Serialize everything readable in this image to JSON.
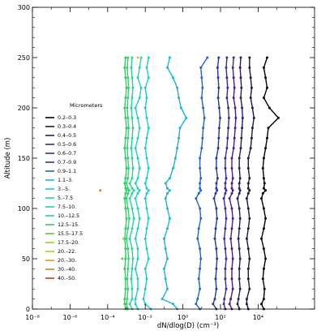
{
  "chart_data": {
    "type": "line",
    "xlabel": "dN/dlog(D) (cm⁻³)",
    "ylabel": "Altitude (m)",
    "x_scale": "log",
    "xlim": [
      1e-08,
      10000000.0
    ],
    "ylim": [
      0,
      300
    ],
    "x_ticks": [
      1e-08,
      1e-06,
      0.0001,
      0.01,
      1,
      100,
      10000
    ],
    "x_tick_labels": [
      "10⁻⁸",
      "10⁻⁶",
      "10⁻⁴",
      "10⁻²",
      "10⁰",
      "10²",
      "10⁴"
    ],
    "y_ticks": [
      0,
      50,
      100,
      150,
      200,
      250,
      300
    ],
    "y_tick_labels": [
      "0",
      "50",
      "100",
      "150",
      "200",
      "250",
      "300"
    ],
    "legend_title": "Micrometers",
    "legend_position": "left",
    "altitudes": [
      0,
      5,
      10,
      20,
      30,
      40,
      50,
      60,
      70,
      80,
      90,
      100,
      110,
      115,
      118,
      120,
      125,
      130,
      140,
      150,
      160,
      170,
      180,
      190,
      200,
      210,
      220,
      230,
      240,
      250
    ],
    "series": [
      {
        "name": "0.2–0.3",
        "color": "#000000",
        "x": [
          20000,
          15000,
          20000,
          22000,
          18000,
          20000,
          25000,
          20000,
          15000,
          20000,
          25000,
          20000,
          15000,
          18000,
          25000,
          20000,
          22000,
          20000,
          18000,
          20000,
          25000,
          30000,
          35000,
          120000,
          40000,
          20000,
          30000,
          25000,
          20000,
          30000
        ]
      },
      {
        "name": "0.3–0.4",
        "color": "#1a1a40",
        "x": [
          3000,
          2500,
          2500,
          3500,
          3000,
          3000,
          3500,
          3000,
          2500,
          3000,
          3500,
          3000,
          2500,
          3000,
          3500,
          3000,
          3000,
          3500,
          3000,
          3000,
          4000,
          4500,
          5000,
          6000,
          5000,
          4000,
          4500,
          4000,
          3500,
          3500
        ]
      },
      {
        "name": "0.4–0.5",
        "color": "#2e1a5e",
        "x": [
          1000,
          800,
          900,
          1100,
          1000,
          1000,
          1100,
          1000,
          900,
          1000,
          1100,
          1000,
          800,
          1000,
          1100,
          1000,
          1000,
          1100,
          1000,
          1000,
          1200,
          1300,
          1400,
          1500,
          1400,
          1200,
          1300,
          1200,
          1100,
          1200
        ]
      },
      {
        "name": "0.5–0.6",
        "color": "#4a1e82",
        "x": [
          400,
          300,
          350,
          450,
          400,
          400,
          450,
          400,
          350,
          400,
          450,
          400,
          300,
          400,
          450,
          400,
          400,
          450,
          400,
          400,
          500,
          550,
          600,
          650,
          600,
          500,
          550,
          500,
          450,
          500
        ]
      },
      {
        "name": "0.6–0.7",
        "color": "#3a2a96",
        "x": [
          180,
          150,
          160,
          200,
          180,
          180,
          200,
          180,
          160,
          180,
          200,
          180,
          150,
          180,
          200,
          180,
          180,
          200,
          180,
          180,
          220,
          240,
          260,
          280,
          260,
          220,
          240,
          220,
          200,
          220
        ]
      },
      {
        "name": "0.7–0.9",
        "color": "#1e3aa0",
        "x": [
          60,
          40,
          50,
          60,
          55,
          60,
          65,
          60,
          50,
          55,
          65,
          60,
          45,
          55,
          65,
          60,
          60,
          70,
          60,
          60,
          75,
          80,
          85,
          95,
          85,
          75,
          80,
          75,
          70,
          80
        ]
      },
      {
        "name": "0.9–1.1",
        "color": "#1e64c8",
        "x": [
          8,
          5,
          6,
          8,
          7,
          8,
          9,
          8,
          6,
          7,
          9,
          8,
          5,
          7,
          9,
          8,
          8,
          9,
          8,
          8,
          10,
          11,
          12,
          14,
          12,
          10,
          11,
          10,
          9,
          20
        ]
      },
      {
        "name": "1.1–3.",
        "color": "#19b4d2",
        "x": [
          0.5,
          0.3,
          0.08,
          0.15,
          0.12,
          0.1,
          0.15,
          0.12,
          0.1,
          0.15,
          0.2,
          0.15,
          0.12,
          0.15,
          0.2,
          0.15,
          0.12,
          0.2,
          0.3,
          0.4,
          0.5,
          0.6,
          0.7,
          1.5,
          0.8,
          0.6,
          0.5,
          0.3,
          0.15,
          0.2
        ]
      },
      {
        "name": "3.–5.",
        "color": "#22c8c8",
        "x": [
          0.02,
          0.01,
          0.008,
          0.01,
          0.012,
          0.01,
          0.015,
          0.012,
          0.01,
          0.012,
          0.015,
          0.012,
          0.01,
          0.012,
          0.015,
          0.012,
          0.01,
          0.012,
          0.015,
          0.012,
          0.01,
          0.012,
          0.015,
          0.012,
          0.01,
          0.012,
          0.01,
          0.015,
          0.012,
          0.015
        ]
      },
      {
        "name": "5.–7.5",
        "color": "#20d2b4",
        "x": [
          0.004,
          0.003,
          0.003,
          0.004,
          0.004,
          0.003,
          0.004,
          0.004,
          0.003,
          0.004,
          0.005,
          0.004,
          0.003,
          0.004,
          0.005,
          0.004,
          0.003,
          0.004,
          0.005,
          0.004,
          0.003,
          0.004,
          0.005,
          0.004,
          0.003,
          0.005,
          0.006,
          0.004,
          0.005,
          0.006
        ]
      },
      {
        "name": "7.5–10.",
        "color": "#28d296",
        "x": [
          0.002,
          0.0015,
          0.002,
          0.002,
          0.0018,
          0.002,
          0.0022,
          0.002,
          0.0015,
          0.002,
          0.0025,
          0.002,
          0.0015,
          0.002,
          0.0025,
          0.002,
          0.0015,
          0.002,
          0.0022,
          0.002,
          0.0018,
          0.002,
          0.0022,
          0.002,
          0.0018,
          0.002,
          0.0022,
          0.002,
          0.0018,
          0.002
        ]
      },
      {
        "name": "10.–12.5",
        "color": "#32d278",
        "x": [
          0.0012,
          0.001,
          0.0011,
          0.0012,
          0.0011,
          0.0012,
          0.0013,
          0.0012,
          0.001,
          0.0012,
          0.0014,
          0.0012,
          0.001,
          0.0012,
          0.0014,
          0.0012,
          0.001,
          0.0012,
          0.0013,
          0.0012,
          0.0011,
          0.0012,
          0.0013,
          0.0012,
          0.0011,
          0.0012,
          0.0013,
          0.0012,
          0.0011,
          0.0012
        ]
      },
      {
        "name": "12.5–15.",
        "color": "#3cc85a",
        "x": [
          0.0009,
          0.0008,
          0.0008,
          0.0009,
          0.0009,
          0.0008,
          0.0009,
          0.0009,
          0.0008,
          0.0009,
          0.001,
          0.0009,
          0.0008,
          0.0009,
          0.001,
          0.0009,
          0.0008,
          0.0009,
          0.001,
          0.0009,
          0.0008,
          0.0009,
          0.001,
          0.0009,
          0.0008,
          0.0009,
          0.001,
          0.0009,
          0.0008,
          0.0009
        ]
      },
      {
        "name": "15.5–17.5",
        "color": "#64c83c",
        "x": [
          null,
          null,
          null,
          null,
          null,
          null,
          0.0006,
          null,
          null,
          null,
          null,
          null,
          null,
          null,
          null,
          null,
          null,
          null,
          null,
          null,
          null,
          null,
          null,
          null,
          null,
          null,
          null,
          null,
          null,
          null
        ]
      },
      {
        "name": "17.5–20.",
        "color": "#96d232",
        "x": [
          null,
          null,
          null,
          null,
          null,
          null,
          null,
          null,
          0.0007,
          null,
          null,
          null,
          null,
          null,
          null,
          null,
          null,
          null,
          null,
          null,
          null,
          null,
          null,
          null,
          null,
          null,
          null,
          null,
          null,
          null
        ]
      },
      {
        "name": "20.–22.",
        "color": "#c8c828",
        "x": [
          null,
          null,
          null,
          null,
          null,
          null,
          null,
          null,
          null,
          null,
          null,
          null,
          null,
          null,
          null,
          null,
          null,
          null,
          null,
          null,
          null,
          null,
          null,
          null,
          null,
          null,
          null,
          null,
          null,
          0.004
        ]
      },
      {
        "name": "20.–30.",
        "color": "#dca028",
        "x": [
          null,
          null,
          null,
          null,
          null,
          null,
          null,
          null,
          null,
          null,
          null,
          null,
          null,
          null,
          null,
          null,
          null,
          null,
          null,
          null,
          null,
          null,
          null,
          null,
          null,
          null,
          null,
          null,
          null,
          null
        ]
      },
      {
        "name": "30.–40.",
        "color": "#dc7828",
        "x": [
          null,
          null,
          null,
          null,
          null,
          null,
          null,
          null,
          null,
          null,
          null,
          null,
          null,
          null,
          4e-05,
          null,
          null,
          null,
          null,
          null,
          null,
          null,
          null,
          null,
          null,
          null,
          null,
          null,
          null,
          null
        ]
      },
      {
        "name": "40.–50.",
        "color": "#c83c1e",
        "x": [
          null,
          null,
          null,
          null,
          null,
          null,
          null,
          null,
          null,
          null,
          null,
          null,
          null,
          null,
          null,
          null,
          null,
          null,
          null,
          null,
          null,
          null,
          null,
          null,
          null,
          null,
          null,
          null,
          null,
          null
        ]
      }
    ]
  }
}
